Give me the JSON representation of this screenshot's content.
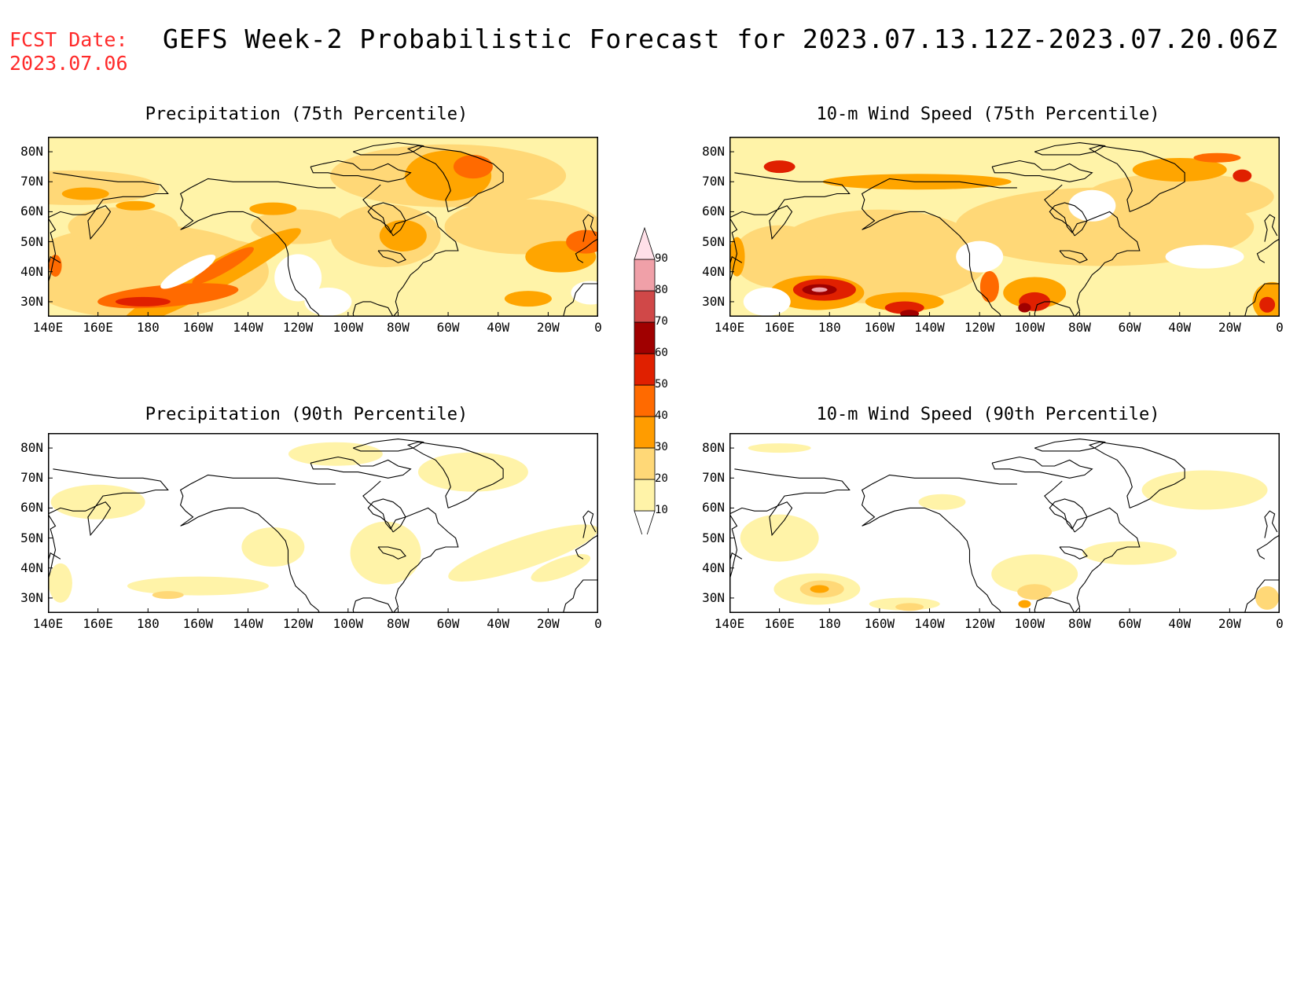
{
  "header": {
    "fcst_label": "FCST Date:",
    "fcst_date": "2023.07.06",
    "title": "GEFS Week-2 Probabilistic Forecast for 2023.07.13.12Z-2023.07.20.06Z"
  },
  "panels": [
    {
      "id": "precip75",
      "title": "Precipitation (75th Percentile)"
    },
    {
      "id": "wind75",
      "title": "10-m Wind Speed (75th Percentile)"
    },
    {
      "id": "precip90",
      "title": "Precipitation (90th Percentile)"
    },
    {
      "id": "wind90",
      "title": "10-m Wind Speed (90th Percentile)"
    }
  ],
  "axes": {
    "lat_labels": [
      "80N",
      "70N",
      "60N",
      "50N",
      "40N",
      "30N"
    ],
    "lon_labels": [
      "140E",
      "160E",
      "180",
      "160W",
      "140W",
      "120W",
      "100W",
      "80W",
      "60W",
      "40W",
      "20W",
      "0"
    ],
    "lat_range": [
      25,
      85
    ],
    "lon_range": [
      140,
      360
    ]
  },
  "colorbar": {
    "levels": [
      "10",
      "20",
      "30",
      "40",
      "50",
      "60",
      "70",
      "80",
      "90"
    ],
    "colors": [
      "#ffffff",
      "#fff3a8",
      "#ffd877",
      "#ff9c00",
      "#ff6a00",
      "#e02000",
      "#a00000",
      "#d04848",
      "#f0a0a8",
      "#ffe0e8"
    ]
  },
  "map_colors": {
    "pale": "#fff3a8",
    "light": "#ffd877",
    "orange": "#ffa500",
    "deep_orange": "#ff6a00",
    "red": "#e02000",
    "dark_red": "#a00000"
  }
}
